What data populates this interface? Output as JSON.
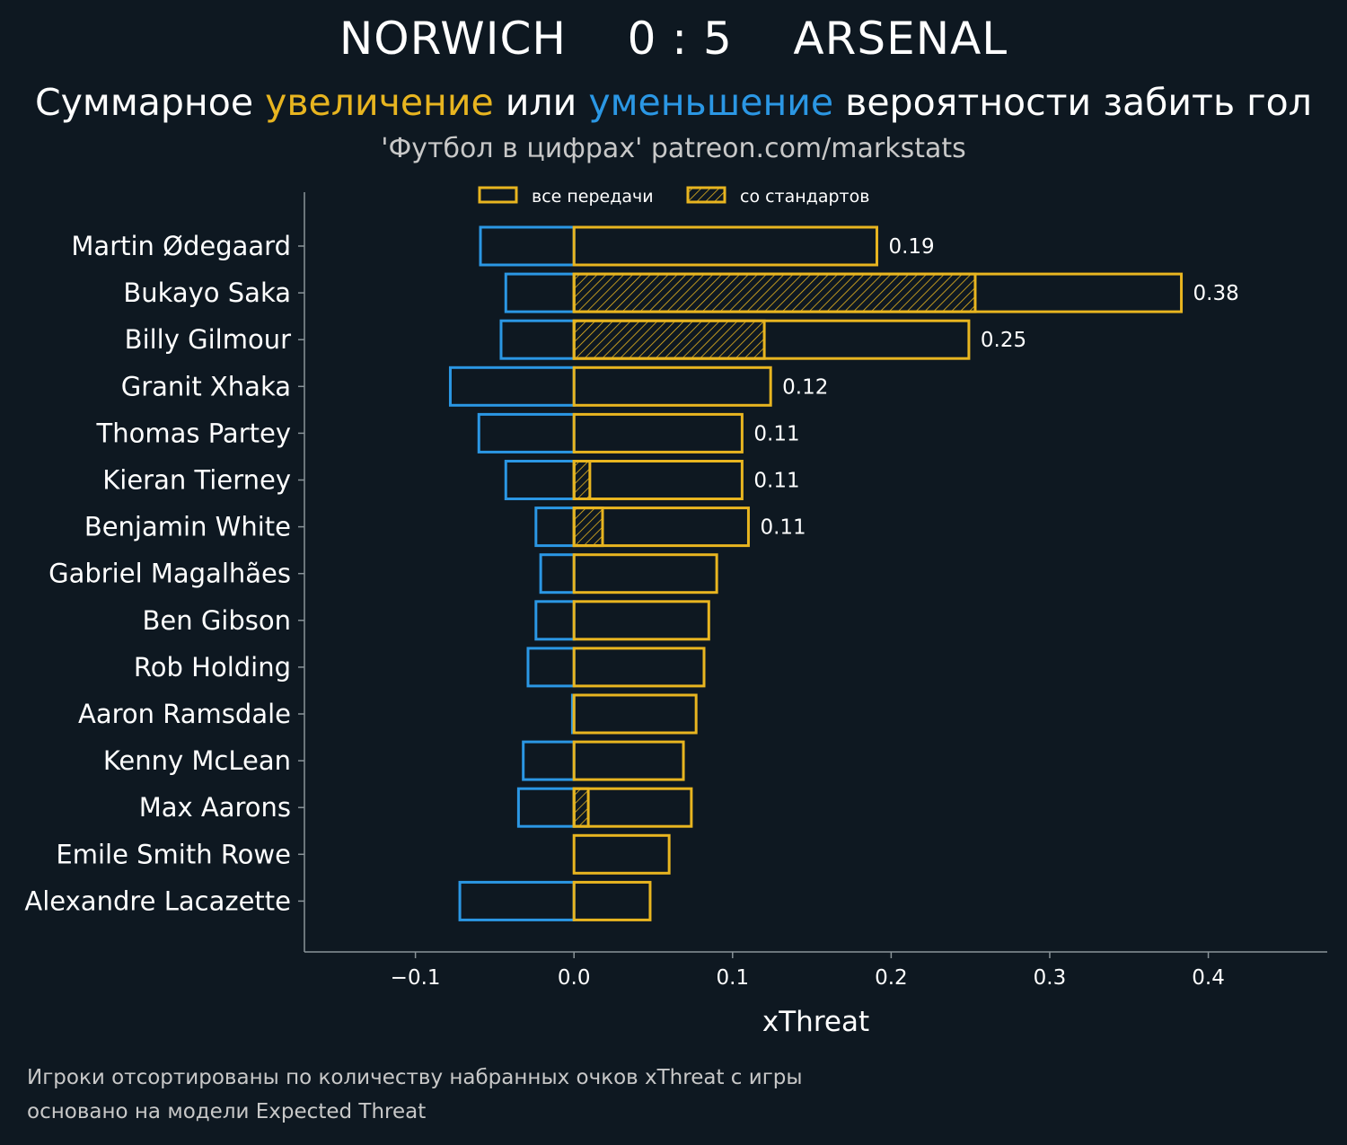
{
  "header": {
    "home_team": "NORWICH",
    "score": "0 : 5",
    "away_team": "ARSENAL",
    "subtitle_part1": "Суммарное ",
    "subtitle_increase": "увеличение",
    "subtitle_part2": " или ",
    "subtitle_decrease": "уменьшение",
    "subtitle_part3": " вероятности забить гол",
    "source": "'Футбол в цифрах' patreon.com/markstats"
  },
  "footnotes": {
    "line1": "Игроки отсортированы по количеству набранных очков xThreat с игры",
    "line2": "основано на модели Expected Threat"
  },
  "colors": {
    "background": "#0e1821",
    "increase": "#e8b520",
    "decrease": "#2b97e4",
    "axis": "#8a9499"
  },
  "chart_data": {
    "type": "bar",
    "orientation": "horizontal",
    "xlabel": "xThreat",
    "xlim": [
      -0.17,
      0.475
    ],
    "xticks": [
      -0.1,
      0.0,
      0.1,
      0.2,
      0.3,
      0.4
    ],
    "xtick_labels": [
      "−0.1",
      "0.0",
      "0.1",
      "0.2",
      "0.3",
      "0.4"
    ],
    "grid": false,
    "legend": {
      "placement": "top-center",
      "entries": [
        "все передачи",
        "со стандартов"
      ]
    },
    "categories": [
      "Martin Ødegaard",
      "Bukayo Saka",
      "Billy Gilmour",
      "Granit Xhaka",
      "Thomas Partey",
      "Kieran Tierney",
      "Benjamin White",
      "Gabriel Magalhães",
      "Ben Gibson",
      "Rob Holding",
      "Aaron Ramsdale",
      "Kenny McLean",
      "Max Aarons",
      "Emile Smith Rowe",
      "Alexandre Lacazette"
    ],
    "series": [
      {
        "name": "все передачи",
        "values": [
          0.191,
          0.383,
          0.249,
          0.124,
          0.106,
          0.106,
          0.11,
          0.09,
          0.085,
          0.082,
          0.077,
          0.069,
          0.074,
          0.06,
          0.048
        ]
      },
      {
        "name": "со стандартов",
        "values": [
          0,
          0.253,
          0.12,
          0,
          0,
          0.01,
          0.018,
          0,
          0,
          0,
          0,
          0,
          0.009,
          0,
          0
        ]
      },
      {
        "values": [
          -0.059,
          -0.043,
          -0.046,
          -0.078,
          -0.06,
          -0.043,
          -0.024,
          -0.021,
          -0.024,
          -0.029,
          -0.001,
          -0.032,
          -0.035,
          0,
          -0.072
        ]
      }
    ],
    "data_labels": [
      "0.19",
      "0.38",
      "0.25",
      "0.12",
      "0.11",
      "0.11",
      "0.11",
      "",
      "",
      "",
      "",
      "",
      "",
      "",
      ""
    ]
  }
}
